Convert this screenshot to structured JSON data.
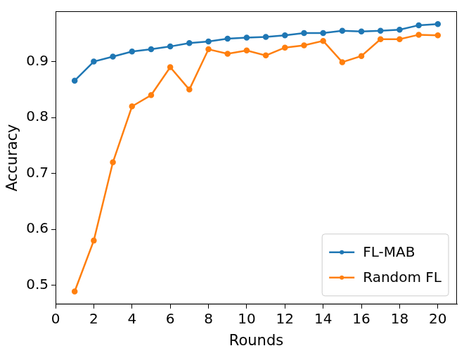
{
  "chart_data": {
    "type": "line",
    "x_label": "Rounds",
    "y_label": "Accuracy",
    "x": [
      1,
      2,
      3,
      4,
      5,
      6,
      7,
      8,
      9,
      10,
      11,
      12,
      13,
      14,
      15,
      16,
      17,
      18,
      19,
      20
    ],
    "series": [
      {
        "name": "FL-MAB",
        "color": "#1f77b4",
        "marker": "circle",
        "line_style": "solid",
        "values": [
          0.866,
          0.9,
          0.909,
          0.918,
          0.922,
          0.927,
          0.933,
          0.936,
          0.941,
          0.943,
          0.944,
          0.947,
          0.951,
          0.951,
          0.955,
          0.954,
          0.955,
          0.957,
          0.965,
          0.967
        ]
      },
      {
        "name": "Random FL",
        "color": "#ff7f0e",
        "marker": "circle",
        "line_style": "solid",
        "values": [
          0.489,
          0.58,
          0.72,
          0.82,
          0.84,
          0.89,
          0.85,
          0.922,
          0.914,
          0.92,
          0.911,
          0.925,
          0.929,
          0.937,
          0.899,
          0.91,
          0.94,
          0.94,
          0.948,
          0.947
        ]
      }
    ],
    "xlim": [
      0,
      21
    ],
    "xticks": [
      0,
      2,
      4,
      6,
      8,
      10,
      12,
      14,
      16,
      18,
      20
    ],
    "ylim": [
      0.466,
      0.99
    ],
    "yticks": [
      0.5,
      0.6,
      0.7,
      0.8,
      0.9
    ],
    "grid": false,
    "legend": "lower right"
  }
}
